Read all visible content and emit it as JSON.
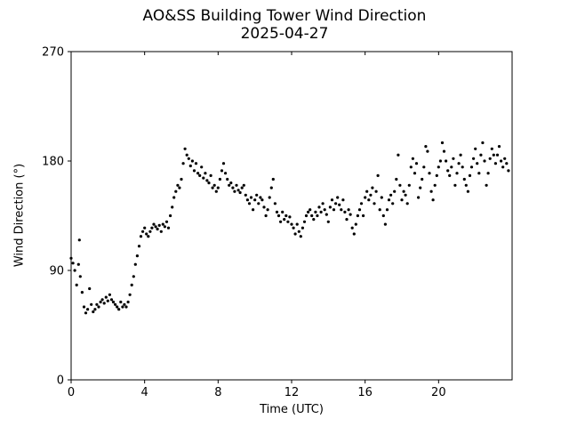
{
  "chart_data": {
    "type": "scatter",
    "title": "AO&SS Building Tower Wind Direction",
    "subtitle": "2025-04-27",
    "xlabel": "Time (UTC)",
    "ylabel": "Wind Direction (°)",
    "xlim": [
      0,
      24
    ],
    "ylim": [
      0,
      270
    ],
    "xticks": [
      0,
      4,
      8,
      12,
      16,
      20
    ],
    "xtick_labels": [
      "0",
      "4",
      "8",
      "12",
      "16",
      "20"
    ],
    "yticks": [
      0,
      90,
      180,
      270
    ],
    "ytick_labels": [
      "0",
      "90",
      "180",
      "270"
    ],
    "grid": false,
    "series": [
      {
        "color": "#000000",
        "marker": "dot",
        "points": [
          [
            0.0,
            100
          ],
          [
            0.1,
            96
          ],
          [
            0.2,
            90
          ],
          [
            0.3,
            78
          ],
          [
            0.4,
            95
          ],
          [
            0.45,
            115
          ],
          [
            0.5,
            85
          ],
          [
            0.6,
            72
          ],
          [
            0.7,
            60
          ],
          [
            0.8,
            55
          ],
          [
            0.9,
            58
          ],
          [
            1.0,
            75
          ],
          [
            1.1,
            62
          ],
          [
            1.2,
            56
          ],
          [
            1.3,
            58
          ],
          [
            1.4,
            62
          ],
          [
            1.5,
            60
          ],
          [
            1.6,
            64
          ],
          [
            1.7,
            66
          ],
          [
            1.8,
            63
          ],
          [
            1.9,
            68
          ],
          [
            2.0,
            65
          ],
          [
            2.1,
            70
          ],
          [
            2.2,
            66
          ],
          [
            2.3,
            64
          ],
          [
            2.4,
            62
          ],
          [
            2.5,
            60
          ],
          [
            2.6,
            58
          ],
          [
            2.7,
            64
          ],
          [
            2.8,
            60
          ],
          [
            2.9,
            62
          ],
          [
            3.0,
            60
          ],
          [
            3.1,
            64
          ],
          [
            3.2,
            70
          ],
          [
            3.3,
            78
          ],
          [
            3.4,
            85
          ],
          [
            3.5,
            95
          ],
          [
            3.6,
            102
          ],
          [
            3.7,
            110
          ],
          [
            3.8,
            118
          ],
          [
            3.9,
            122
          ],
          [
            4.0,
            125
          ],
          [
            4.1,
            120
          ],
          [
            4.2,
            118
          ],
          [
            4.3,
            122
          ],
          [
            4.4,
            125
          ],
          [
            4.5,
            128
          ],
          [
            4.6,
            126
          ],
          [
            4.7,
            124
          ],
          [
            4.8,
            127
          ],
          [
            4.9,
            122
          ],
          [
            5.0,
            128
          ],
          [
            5.1,
            126
          ],
          [
            5.2,
            130
          ],
          [
            5.3,
            125
          ],
          [
            5.4,
            135
          ],
          [
            5.5,
            142
          ],
          [
            5.6,
            150
          ],
          [
            5.7,
            155
          ],
          [
            5.8,
            160
          ],
          [
            5.9,
            158
          ],
          [
            6.0,
            165
          ],
          [
            6.1,
            178
          ],
          [
            6.2,
            190
          ],
          [
            6.3,
            185
          ],
          [
            6.4,
            182
          ],
          [
            6.5,
            176
          ],
          [
            6.6,
            180
          ],
          [
            6.7,
            172
          ],
          [
            6.8,
            178
          ],
          [
            6.9,
            170
          ],
          [
            7.0,
            168
          ],
          [
            7.1,
            175
          ],
          [
            7.2,
            166
          ],
          [
            7.3,
            170
          ],
          [
            7.4,
            164
          ],
          [
            7.5,
            162
          ],
          [
            7.6,
            168
          ],
          [
            7.7,
            158
          ],
          [
            7.8,
            160
          ],
          [
            7.9,
            155
          ],
          [
            8.0,
            158
          ],
          [
            8.1,
            165
          ],
          [
            8.2,
            172
          ],
          [
            8.3,
            178
          ],
          [
            8.4,
            170
          ],
          [
            8.5,
            165
          ],
          [
            8.6,
            160
          ],
          [
            8.7,
            162
          ],
          [
            8.8,
            158
          ],
          [
            8.9,
            155
          ],
          [
            9.0,
            160
          ],
          [
            9.1,
            156
          ],
          [
            9.2,
            154
          ],
          [
            9.3,
            158
          ],
          [
            9.4,
            160
          ],
          [
            9.5,
            152
          ],
          [
            9.6,
            148
          ],
          [
            9.7,
            145
          ],
          [
            9.8,
            150
          ],
          [
            9.9,
            140
          ],
          [
            10.0,
            148
          ],
          [
            10.1,
            152
          ],
          [
            10.2,
            145
          ],
          [
            10.3,
            150
          ],
          [
            10.4,
            148
          ],
          [
            10.5,
            142
          ],
          [
            10.6,
            135
          ],
          [
            10.7,
            140
          ],
          [
            10.8,
            150
          ],
          [
            10.9,
            158
          ],
          [
            11.0,
            165
          ],
          [
            11.1,
            145
          ],
          [
            11.2,
            138
          ],
          [
            11.3,
            135
          ],
          [
            11.4,
            130
          ],
          [
            11.5,
            138
          ],
          [
            11.6,
            132
          ],
          [
            11.7,
            135
          ],
          [
            11.8,
            130
          ],
          [
            11.9,
            134
          ],
          [
            12.0,
            128
          ],
          [
            12.1,
            125
          ],
          [
            12.2,
            120
          ],
          [
            12.3,
            128
          ],
          [
            12.4,
            122
          ],
          [
            12.5,
            118
          ],
          [
            12.6,
            125
          ],
          [
            12.7,
            130
          ],
          [
            12.8,
            135
          ],
          [
            12.9,
            138
          ],
          [
            13.0,
            140
          ],
          [
            13.1,
            135
          ],
          [
            13.2,
            132
          ],
          [
            13.3,
            138
          ],
          [
            13.4,
            135
          ],
          [
            13.5,
            142
          ],
          [
            13.6,
            138
          ],
          [
            13.7,
            145
          ],
          [
            13.8,
            140
          ],
          [
            13.9,
            136
          ],
          [
            14.0,
            130
          ],
          [
            14.1,
            142
          ],
          [
            14.2,
            148
          ],
          [
            14.3,
            140
          ],
          [
            14.4,
            145
          ],
          [
            14.5,
            150
          ],
          [
            14.6,
            144
          ],
          [
            14.7,
            140
          ],
          [
            14.8,
            148
          ],
          [
            14.9,
            138
          ],
          [
            15.0,
            132
          ],
          [
            15.1,
            140
          ],
          [
            15.2,
            136
          ],
          [
            15.3,
            125
          ],
          [
            15.4,
            120
          ],
          [
            15.5,
            128
          ],
          [
            15.6,
            135
          ],
          [
            15.7,
            140
          ],
          [
            15.8,
            145
          ],
          [
            15.9,
            135
          ],
          [
            16.0,
            150
          ],
          [
            16.1,
            155
          ],
          [
            16.2,
            148
          ],
          [
            16.3,
            152
          ],
          [
            16.4,
            158
          ],
          [
            16.5,
            145
          ],
          [
            16.6,
            155
          ],
          [
            16.7,
            168
          ],
          [
            16.8,
            140
          ],
          [
            16.9,
            150
          ],
          [
            17.0,
            135
          ],
          [
            17.1,
            128
          ],
          [
            17.2,
            140
          ],
          [
            17.3,
            148
          ],
          [
            17.4,
            152
          ],
          [
            17.5,
            145
          ],
          [
            17.6,
            155
          ],
          [
            17.7,
            165
          ],
          [
            17.8,
            185
          ],
          [
            17.9,
            160
          ],
          [
            18.0,
            148
          ],
          [
            18.1,
            155
          ],
          [
            18.2,
            152
          ],
          [
            18.3,
            145
          ],
          [
            18.4,
            160
          ],
          [
            18.5,
            175
          ],
          [
            18.6,
            182
          ],
          [
            18.7,
            170
          ],
          [
            18.8,
            178
          ],
          [
            18.9,
            150
          ],
          [
            19.0,
            158
          ],
          [
            19.1,
            165
          ],
          [
            19.2,
            175
          ],
          [
            19.3,
            192
          ],
          [
            19.4,
            188
          ],
          [
            19.5,
            170
          ],
          [
            19.6,
            155
          ],
          [
            19.7,
            148
          ],
          [
            19.8,
            160
          ],
          [
            19.9,
            168
          ],
          [
            20.0,
            175
          ],
          [
            20.1,
            180
          ],
          [
            20.2,
            195
          ],
          [
            20.3,
            188
          ],
          [
            20.4,
            180
          ],
          [
            20.5,
            172
          ],
          [
            20.6,
            168
          ],
          [
            20.7,
            175
          ],
          [
            20.8,
            182
          ],
          [
            20.9,
            160
          ],
          [
            21.0,
            170
          ],
          [
            21.1,
            178
          ],
          [
            21.2,
            185
          ],
          [
            21.3,
            175
          ],
          [
            21.4,
            165
          ],
          [
            21.5,
            160
          ],
          [
            21.6,
            155
          ],
          [
            21.7,
            168
          ],
          [
            21.8,
            175
          ],
          [
            21.9,
            182
          ],
          [
            22.0,
            190
          ],
          [
            22.1,
            178
          ],
          [
            22.2,
            170
          ],
          [
            22.3,
            185
          ],
          [
            22.4,
            195
          ],
          [
            22.5,
            180
          ],
          [
            22.6,
            160
          ],
          [
            22.7,
            170
          ],
          [
            22.8,
            182
          ],
          [
            22.9,
            190
          ],
          [
            23.0,
            185
          ],
          [
            23.1,
            178
          ],
          [
            23.2,
            185
          ],
          [
            23.3,
            192
          ],
          [
            23.4,
            180
          ],
          [
            23.5,
            175
          ],
          [
            23.6,
            182
          ],
          [
            23.7,
            178
          ],
          [
            23.8,
            172
          ]
        ]
      }
    ]
  }
}
